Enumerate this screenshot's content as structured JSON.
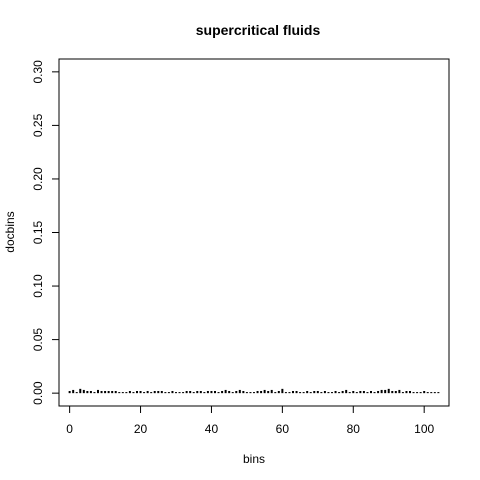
{
  "chart_data": {
    "type": "bar",
    "title": "supercritical fluids",
    "xlabel": "bins",
    "ylabel": "docbins",
    "xlim": [
      -3,
      107
    ],
    "ylim": [
      -0.012,
      0.312
    ],
    "xticks": [
      0,
      20,
      40,
      60,
      80,
      100
    ],
    "yticks": [
      0.0,
      0.05,
      0.1,
      0.15,
      0.2,
      0.25,
      0.3
    ],
    "ytick_labels": [
      "0.00",
      "0.05",
      "0.10",
      "0.15",
      "0.20",
      "0.25",
      "0.30"
    ],
    "x": [
      0,
      1,
      2,
      3,
      4,
      5,
      6,
      7,
      8,
      9,
      10,
      11,
      12,
      13,
      14,
      15,
      16,
      17,
      18,
      19,
      20,
      21,
      22,
      23,
      24,
      25,
      26,
      27,
      28,
      29,
      30,
      31,
      32,
      33,
      34,
      35,
      36,
      37,
      38,
      39,
      40,
      41,
      42,
      43,
      44,
      45,
      46,
      47,
      48,
      49,
      50,
      51,
      52,
      53,
      54,
      55,
      56,
      57,
      58,
      59,
      60,
      61,
      62,
      63,
      64,
      65,
      66,
      67,
      68,
      69,
      70,
      71,
      72,
      73,
      74,
      75,
      76,
      77,
      78,
      79,
      80,
      81,
      82,
      83,
      84,
      85,
      86,
      87,
      88,
      89,
      90,
      91,
      92,
      93,
      94,
      95,
      96,
      97,
      98,
      99,
      100,
      101,
      102,
      103,
      104
    ],
    "values": [
      0.002,
      0.003,
      0.001,
      0.004,
      0.003,
      0.002,
      0.002,
      0.001,
      0.003,
      0.002,
      0.002,
      0.002,
      0.002,
      0.002,
      0.001,
      0.001,
      0.001,
      0.002,
      0.001,
      0.002,
      0.002,
      0.001,
      0.002,
      0.001,
      0.002,
      0.002,
      0.002,
      0.001,
      0.001,
      0.002,
      0.001,
      0.001,
      0.001,
      0.002,
      0.002,
      0.001,
      0.002,
      0.002,
      0.001,
      0.002,
      0.002,
      0.002,
      0.001,
      0.002,
      0.003,
      0.002,
      0.001,
      0.002,
      0.003,
      0.002,
      0.001,
      0.001,
      0.001,
      0.002,
      0.002,
      0.003,
      0.002,
      0.003,
      0.001,
      0.002,
      0.004,
      0.001,
      0.001,
      0.002,
      0.002,
      0.001,
      0.001,
      0.002,
      0.001,
      0.002,
      0.002,
      0.001,
      0.002,
      0.001,
      0.001,
      0.002,
      0.001,
      0.002,
      0.003,
      0.001,
      0.002,
      0.001,
      0.002,
      0.002,
      0.001,
      0.002,
      0.001,
      0.002,
      0.003,
      0.003,
      0.004,
      0.002,
      0.002,
      0.003,
      0.001,
      0.002,
      0.002,
      0.001,
      0.001,
      0.001,
      0.002,
      0.001,
      0.001,
      0.001,
      0.001
    ]
  }
}
